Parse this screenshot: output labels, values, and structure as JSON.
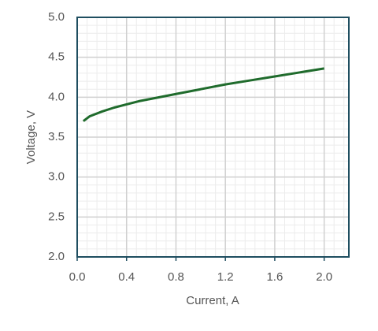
{
  "chart_data": {
    "type": "line",
    "x_label": "Current, A",
    "y_label": "Voltage, V",
    "x": [
      0.05,
      0.1,
      0.2,
      0.3,
      0.4,
      0.5,
      0.6,
      0.8,
      1.0,
      1.2,
      1.4,
      1.6,
      1.8,
      2.0
    ],
    "series": [
      {
        "name": "Voltage",
        "color": "#1f6b2c",
        "values": [
          3.7,
          3.76,
          3.82,
          3.87,
          3.91,
          3.95,
          3.98,
          4.04,
          4.1,
          4.16,
          4.21,
          4.26,
          4.31,
          4.36
        ]
      }
    ],
    "xlim": [
      0,
      2.2
    ],
    "xticks": [
      {
        "value": 0,
        "label": "0.0"
      },
      {
        "value": 0.4,
        "label": "0.4"
      },
      {
        "value": 0.8,
        "label": "0.8"
      },
      {
        "value": 1.2,
        "label": "1.2"
      },
      {
        "value": 1.6,
        "label": "1.6"
      },
      {
        "value": 2.0,
        "label": "2.0"
      }
    ],
    "ylim": [
      2,
      5
    ],
    "yticks": [
      {
        "value": 2,
        "label": "2.0"
      },
      {
        "value": 2.5,
        "label": "2.5"
      },
      {
        "value": 3,
        "label": "3.0"
      },
      {
        "value": 3.5,
        "label": "3.5"
      },
      {
        "value": 4,
        "label": "4.0"
      },
      {
        "value": 4.5,
        "label": "4.5"
      },
      {
        "value": 5,
        "label": "5.0"
      }
    ],
    "grid": true,
    "x_minor_step": 0.08,
    "y_minor_step": 0.1,
    "frame_color": "#1f4e60"
  }
}
